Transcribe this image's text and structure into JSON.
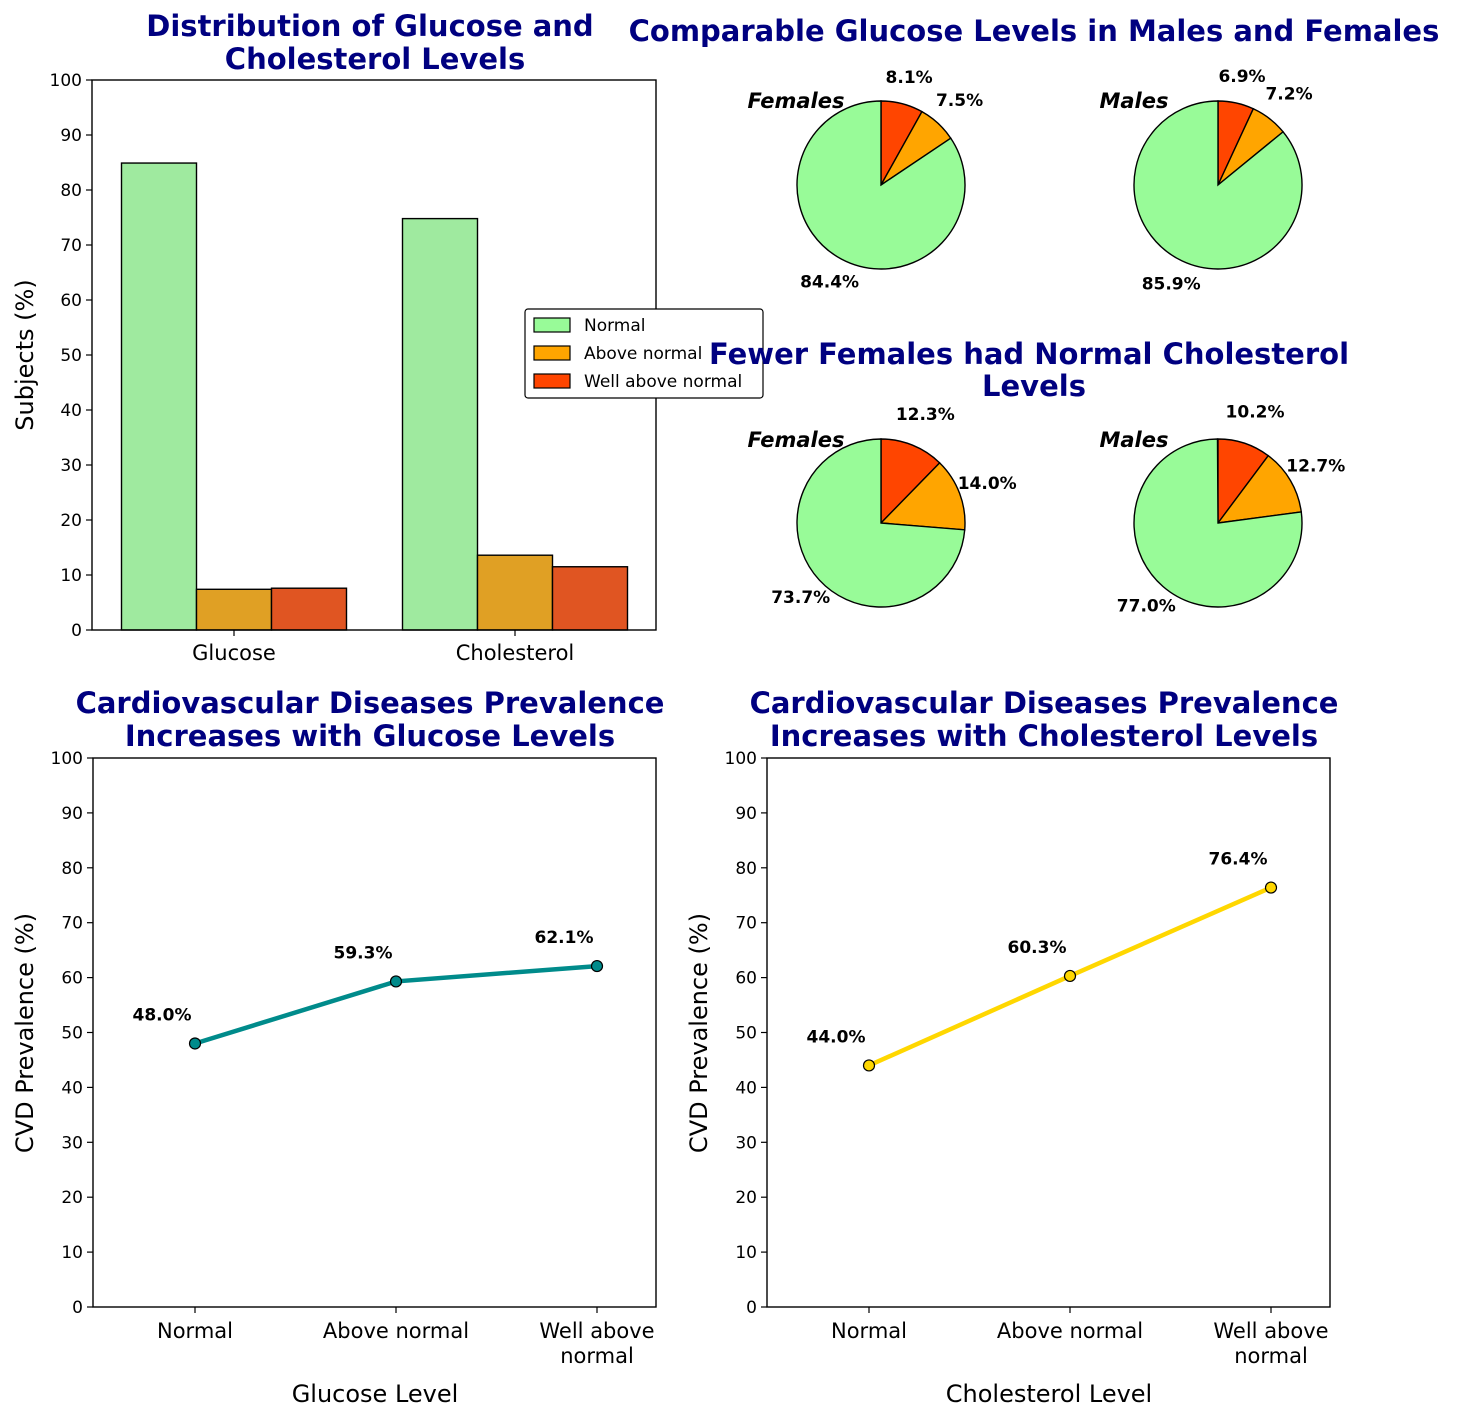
{
  "colors": {
    "title": "#000080",
    "normal": "#98FB98",
    "above": "#FFA500",
    "well_above": "#FF4500",
    "glucose_line": "#008B8B",
    "cholesterol_line": "#FFD700"
  },
  "chart_data": [
    {
      "type": "bar",
      "title": "Distribution of Glucose and Cholesterol Levels",
      "ylabel": "Subjects (%)",
      "xlabel": "",
      "categories": [
        "Glucose",
        "Cholesterol"
      ],
      "ylim": [
        0,
        100
      ],
      "yticks": [
        0,
        10,
        20,
        30,
        40,
        50,
        60,
        70,
        80,
        90,
        100
      ],
      "legend_position": "center-right",
      "series": [
        {
          "name": "Normal",
          "values": [
            84.9,
            74.8
          ]
        },
        {
          "name": "Above normal",
          "values": [
            7.4,
            13.6
          ]
        },
        {
          "name": "Well above normal",
          "values": [
            7.6,
            11.5
          ]
        }
      ]
    },
    {
      "type": "pie",
      "title": "Comparable Glucose Levels in Males and Females",
      "pies": [
        {
          "label": "Females",
          "slices": [
            {
              "name": "Normal",
              "pct_label": "84.4%",
              "value": 84.4
            },
            {
              "name": "Above normal",
              "pct_label": "7.5%",
              "value": 7.5
            },
            {
              "name": "Well above normal",
              "pct_label": "8.1%",
              "value": 8.1
            }
          ]
        },
        {
          "label": "Males",
          "slices": [
            {
              "name": "Normal",
              "pct_label": "85.9%",
              "value": 85.9
            },
            {
              "name": "Above normal",
              "pct_label": "7.2%",
              "value": 7.2
            },
            {
              "name": "Well above normal",
              "pct_label": "6.9%",
              "value": 6.9
            }
          ]
        }
      ]
    },
    {
      "type": "pie",
      "title": "Fewer Females had Normal Cholesterol Levels",
      "pies": [
        {
          "label": "Females",
          "slices": [
            {
              "name": "Normal",
              "pct_label": "73.7%",
              "value": 73.7
            },
            {
              "name": "Above normal",
              "pct_label": "14.0%",
              "value": 14.0
            },
            {
              "name": "Well above normal",
              "pct_label": "12.3%",
              "value": 12.3
            }
          ]
        },
        {
          "label": "Males",
          "slices": [
            {
              "name": "Normal",
              "pct_label": "77.0%",
              "value": 77.0
            },
            {
              "name": "Above normal",
              "pct_label": "12.7%",
              "value": 12.7
            },
            {
              "name": "Well above normal",
              "pct_label": "10.2%",
              "value": 10.2
            }
          ]
        }
      ]
    },
    {
      "type": "line",
      "title": "Cardiovascular Diseases Prevalence Increases with Glucose Levels",
      "xlabel": "Glucose Level",
      "ylabel": "CVD Prevalence (%)",
      "categories": [
        "Normal",
        "Above normal",
        "Well above normal"
      ],
      "values": [
        48.0,
        59.3,
        62.1
      ],
      "point_labels": [
        "48.0%",
        "59.3%",
        "62.1%"
      ],
      "ylim": [
        0,
        100
      ],
      "yticks": [
        0,
        10,
        20,
        30,
        40,
        50,
        60,
        70,
        80,
        90,
        100
      ]
    },
    {
      "type": "line",
      "title": "Cardiovascular Diseases Prevalence Increases with Cholesterol Levels",
      "xlabel": "Cholesterol Level",
      "ylabel": "CVD Prevalence (%)",
      "categories": [
        "Normal",
        "Above normal",
        "Well above normal"
      ],
      "values": [
        44.0,
        60.3,
        76.4
      ],
      "point_labels": [
        "44.0%",
        "60.3%",
        "76.4%"
      ],
      "ylim": [
        0,
        100
      ],
      "yticks": [
        0,
        10,
        20,
        30,
        40,
        50,
        60,
        70,
        80,
        90,
        100
      ]
    }
  ]
}
